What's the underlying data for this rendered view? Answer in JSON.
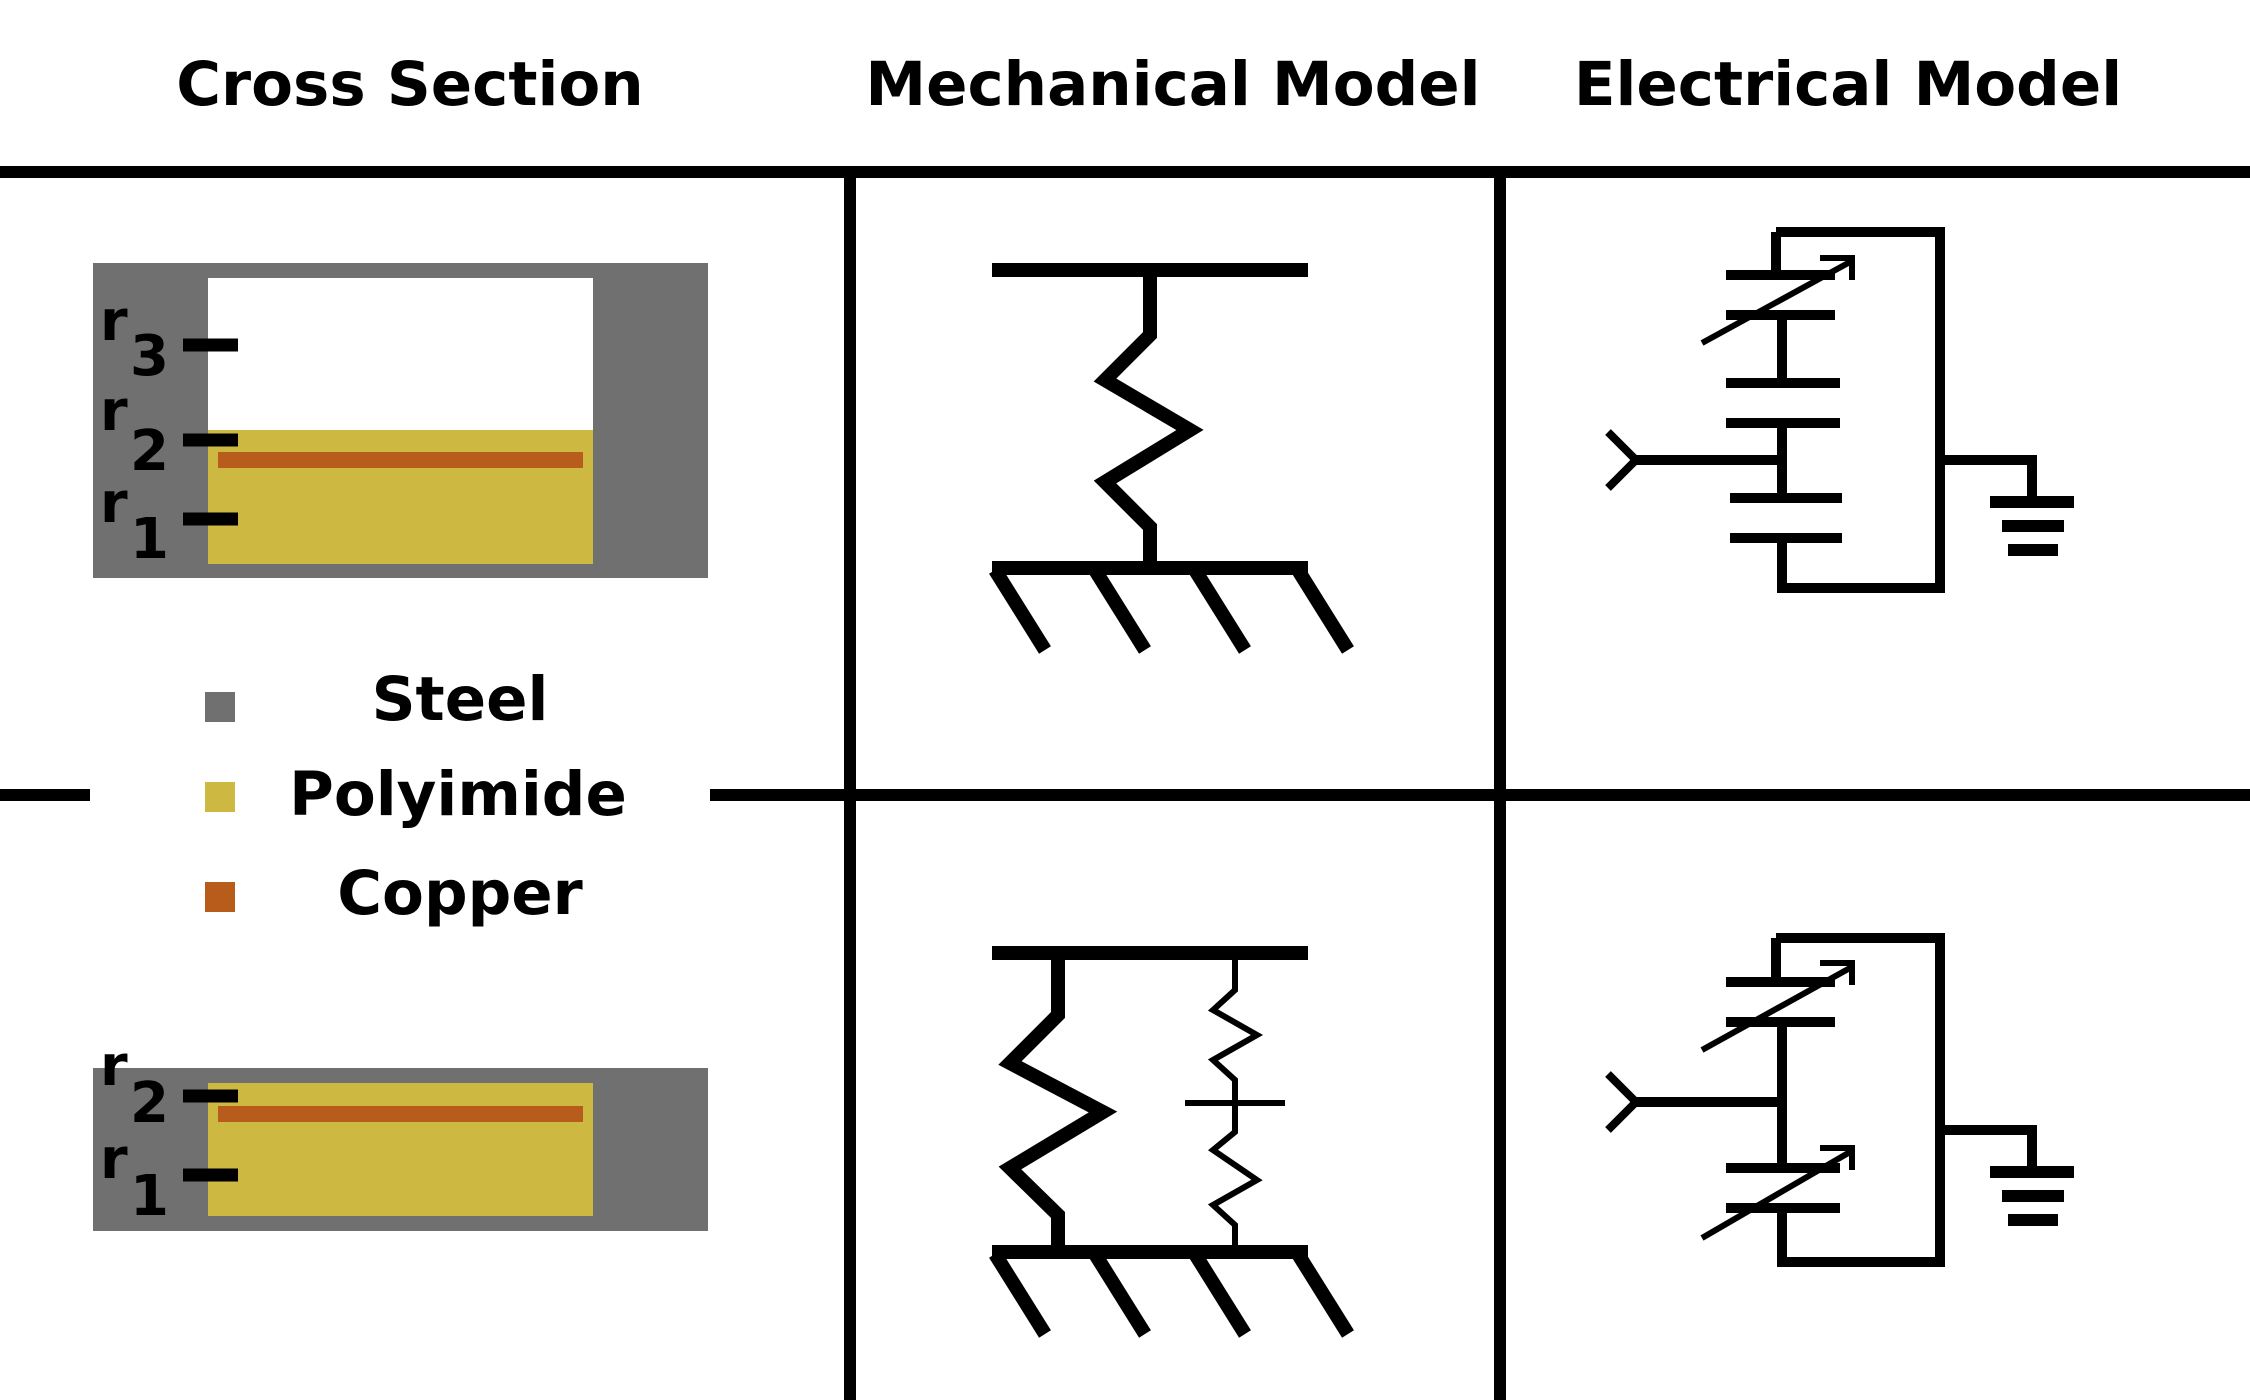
{
  "headers": {
    "cross_section": "Cross Section",
    "mechanical_model": "Mechanical Model",
    "electrical_model": "Electrical Model"
  },
  "cross_section_top": {
    "labels": [
      {
        "r": "r",
        "sub": "3"
      },
      {
        "r": "r",
        "sub": "2"
      },
      {
        "r": "r",
        "sub": "1"
      }
    ]
  },
  "cross_section_bottom": {
    "labels": [
      {
        "r": "r",
        "sub": "2"
      },
      {
        "r": "r",
        "sub": "1"
      }
    ]
  },
  "legend": [
    {
      "label": "Steel",
      "color": "#707070"
    },
    {
      "label": "Polyimide",
      "color": "#cdb942"
    },
    {
      "label": "Copper",
      "color": "#b85c1c"
    }
  ],
  "colors": {
    "steel": "#707070",
    "polyimide": "#cdb942",
    "copper": "#b85c1c",
    "line": "#000000"
  }
}
